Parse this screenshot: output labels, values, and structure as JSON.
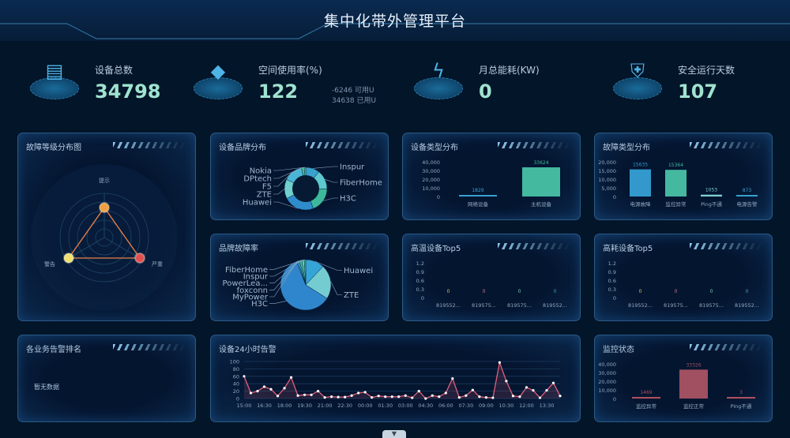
{
  "header": {
    "title": "集中化带外管理平台"
  },
  "kpis": [
    {
      "label": "设备总数",
      "value": "34798",
      "icon": "server-icon"
    },
    {
      "label": "空间使用率(%)",
      "value": "122",
      "icon": "cube-icon",
      "sub": [
        "-6246 可用U",
        "34638 已用U"
      ]
    },
    {
      "label": "月总能耗(KW)",
      "value": "0",
      "icon": "power-icon"
    },
    {
      "label": "安全运行天数",
      "value": "107",
      "icon": "shield-icon"
    }
  ],
  "panels": {
    "fault_level": {
      "title": "故障等级分布图"
    },
    "brand_dist": {
      "title": "设备品牌分布"
    },
    "type_dist": {
      "title": "设备类型分布"
    },
    "fault_type": {
      "title": "故障类型分布"
    },
    "brand_fault": {
      "title": "品牌故障率"
    },
    "high_temp": {
      "title": "高温设备Top5"
    },
    "high_power": {
      "title": "高耗设备Top5"
    },
    "biz_alarm": {
      "title": "各业务告警排名",
      "empty": "暂无数据"
    },
    "alarm24": {
      "title": "设备24小时告警"
    },
    "monitor": {
      "title": "监控状态"
    }
  },
  "chart_data": [
    {
      "id": "fault_level",
      "type": "radar",
      "indicators": [
        "提示",
        "严重",
        "警告"
      ],
      "colors": [
        "#f0a040",
        "#e05050",
        "#f0e070"
      ]
    },
    {
      "id": "brand_dist",
      "type": "pie",
      "donut": true,
      "labels": [
        "Inspur",
        "FiberHome",
        "H3C",
        "Huawei",
        "ZTE",
        "F5",
        "DPtech",
        "Nokia"
      ],
      "values": [
        10,
        14,
        18,
        22,
        14,
        14,
        2,
        1
      ],
      "colors": [
        "#3aa0d0",
        "#5cc8d0",
        "#3cb89a",
        "#2e8ccc",
        "#6fd0cc",
        "#4bb5d8",
        "#40c090",
        "#60d0a0"
      ]
    },
    {
      "id": "type_dist",
      "type": "bar",
      "categories": [
        "网络设备",
        "主机设备"
      ],
      "values": [
        1829,
        33624
      ],
      "ylim": [
        0,
        40000
      ],
      "ticks": [
        "40,000",
        "30,000",
        "20,000",
        "10,000",
        "0"
      ],
      "colors": [
        "#3a9fd0",
        "#44b9a0"
      ]
    },
    {
      "id": "fault_type",
      "type": "bar",
      "categories": [
        "电源故障",
        "监控异常",
        "Ping不通",
        "电源告警"
      ],
      "values": [
        15635,
        15364,
        1053,
        873
      ],
      "ylim": [
        0,
        20000
      ],
      "ticks": [
        "20,000",
        "15,000",
        "10,000",
        "5,000",
        "0"
      ],
      "colors": [
        "#3399cc",
        "#44b9a0",
        "#7ccfd0",
        "#3a9fd0"
      ]
    },
    {
      "id": "brand_fault",
      "type": "pie",
      "labels": [
        "Huawei",
        "ZTE",
        "H3C",
        "MyPower",
        "foxconn",
        "PowerLea...",
        "Inspur",
        "FiberHome"
      ],
      "values": [
        12,
        22,
        60,
        1,
        1,
        1.5,
        1.5,
        1
      ],
      "colors": [
        "#35a5d8",
        "#74ccd0",
        "#2f86cc",
        "#3a9fd0",
        "#4bb5d8",
        "#40c0a0",
        "#60d0c0",
        "#3cc090"
      ]
    },
    {
      "id": "high_temp",
      "type": "bar",
      "categories": [
        "819552...",
        "819575...",
        "819575...",
        "819552..."
      ],
      "values": [
        0,
        0,
        0,
        0
      ],
      "ylim": [
        0,
        1.2
      ],
      "ticks": [
        "1.2",
        "0.9",
        "0.6",
        "0.3",
        "0"
      ],
      "colors": [
        "#d0c060",
        "#d07080",
        "#70c8b0",
        "#40a0d0"
      ]
    },
    {
      "id": "high_power",
      "type": "bar",
      "categories": [
        "819552...",
        "819575...",
        "819575...",
        "819552..."
      ],
      "values": [
        0,
        0,
        0,
        0
      ],
      "ylim": [
        0,
        1.2
      ],
      "ticks": [
        "1.2",
        "0.9",
        "0.6",
        "0.3",
        "0"
      ],
      "colors": [
        "#d0c060",
        "#d07080",
        "#70c8b0",
        "#40a0d0"
      ]
    },
    {
      "id": "alarm24",
      "type": "line",
      "x_ticks": [
        "15:00",
        "16:30",
        "18:00",
        "19:30",
        "21:00",
        "22:30",
        "00:00",
        "01:30",
        "03:00",
        "04:30",
        "06:00",
        "07:30",
        "09:00",
        "10:30",
        "12:00",
        "13:30"
      ],
      "ylim": [
        0,
        100
      ],
      "y_ticks": [
        "100",
        "80",
        "60",
        "40",
        "20",
        "0"
      ],
      "values": [
        60,
        15,
        20,
        32,
        25,
        7,
        28,
        57,
        8,
        10,
        10,
        20,
        3,
        5,
        4,
        4,
        8,
        15,
        17,
        3,
        7,
        5,
        5,
        5,
        8,
        2,
        20,
        0,
        8,
        5,
        15,
        54,
        3,
        8,
        23,
        5,
        3,
        2,
        97,
        47,
        7,
        5,
        30,
        22,
        2,
        22,
        42,
        7
      ],
      "color": "#e0607a"
    },
    {
      "id": "monitor",
      "type": "bar",
      "categories": [
        "监控异常",
        "监控正常",
        "Ping不通"
      ],
      "values": [
        1469,
        33326,
        3
      ],
      "ylim": [
        0,
        40000
      ],
      "ticks": [
        "40,000",
        "30,000",
        "20,000",
        "10,000",
        "0"
      ],
      "colors": [
        "#b05060",
        "#a05060",
        "#b05060"
      ]
    }
  ]
}
